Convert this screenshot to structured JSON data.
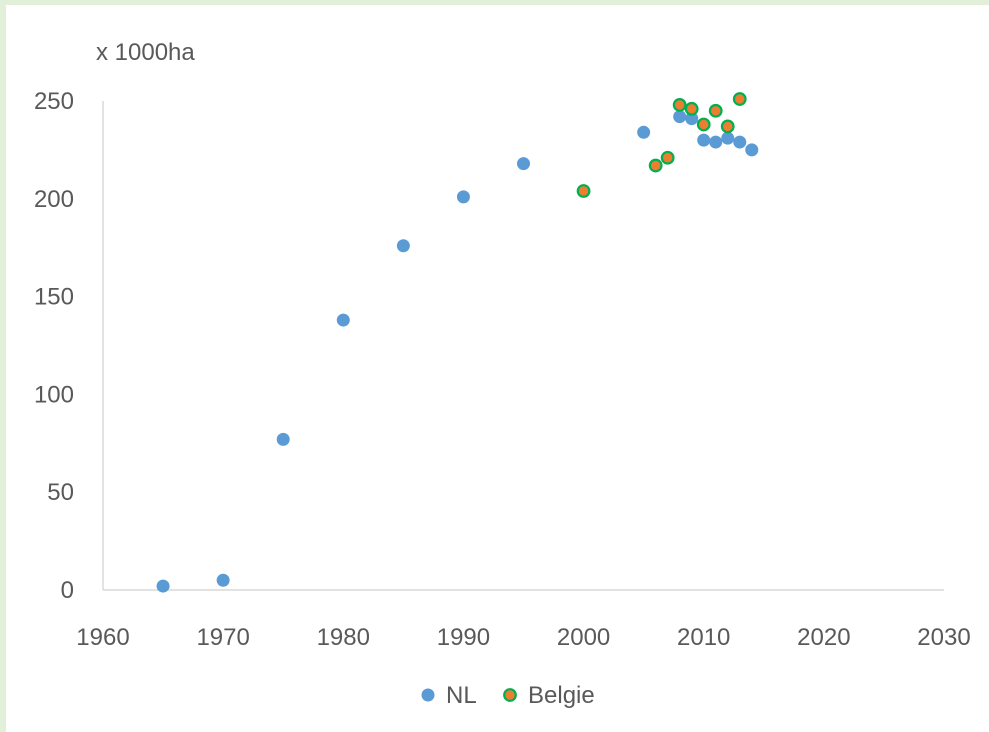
{
  "chart_data": {
    "type": "scatter",
    "title": "",
    "xlabel": "",
    "ylabel": "x 1000ha",
    "xlim": [
      1960,
      2030
    ],
    "ylim": [
      0,
      250
    ],
    "x_ticks": [
      1960,
      1970,
      1980,
      1990,
      2000,
      2010,
      2020,
      2030
    ],
    "y_ticks": [
      0,
      50,
      100,
      150,
      200,
      250
    ],
    "grid": false,
    "legend_position": "bottom",
    "series": [
      {
        "name": "NL",
        "color": "#5b9bd5",
        "x": [
          1965,
          1970,
          1975,
          1980,
          1985,
          1990,
          1995,
          2005,
          2008,
          2009,
          2010,
          2011,
          2012,
          2013,
          2014
        ],
        "y": [
          2,
          5,
          77,
          138,
          176,
          201,
          218,
          234,
          242,
          241,
          230,
          229,
          231,
          229,
          225
        ]
      },
      {
        "name": "Belgie",
        "color": "#ed7d31",
        "edge_color": "#00b050",
        "x": [
          2000,
          2006,
          2007,
          2008,
          2009,
          2010,
          2011,
          2012,
          2013
        ],
        "y": [
          204,
          217,
          221,
          248,
          246,
          238,
          245,
          237,
          251
        ]
      }
    ]
  }
}
